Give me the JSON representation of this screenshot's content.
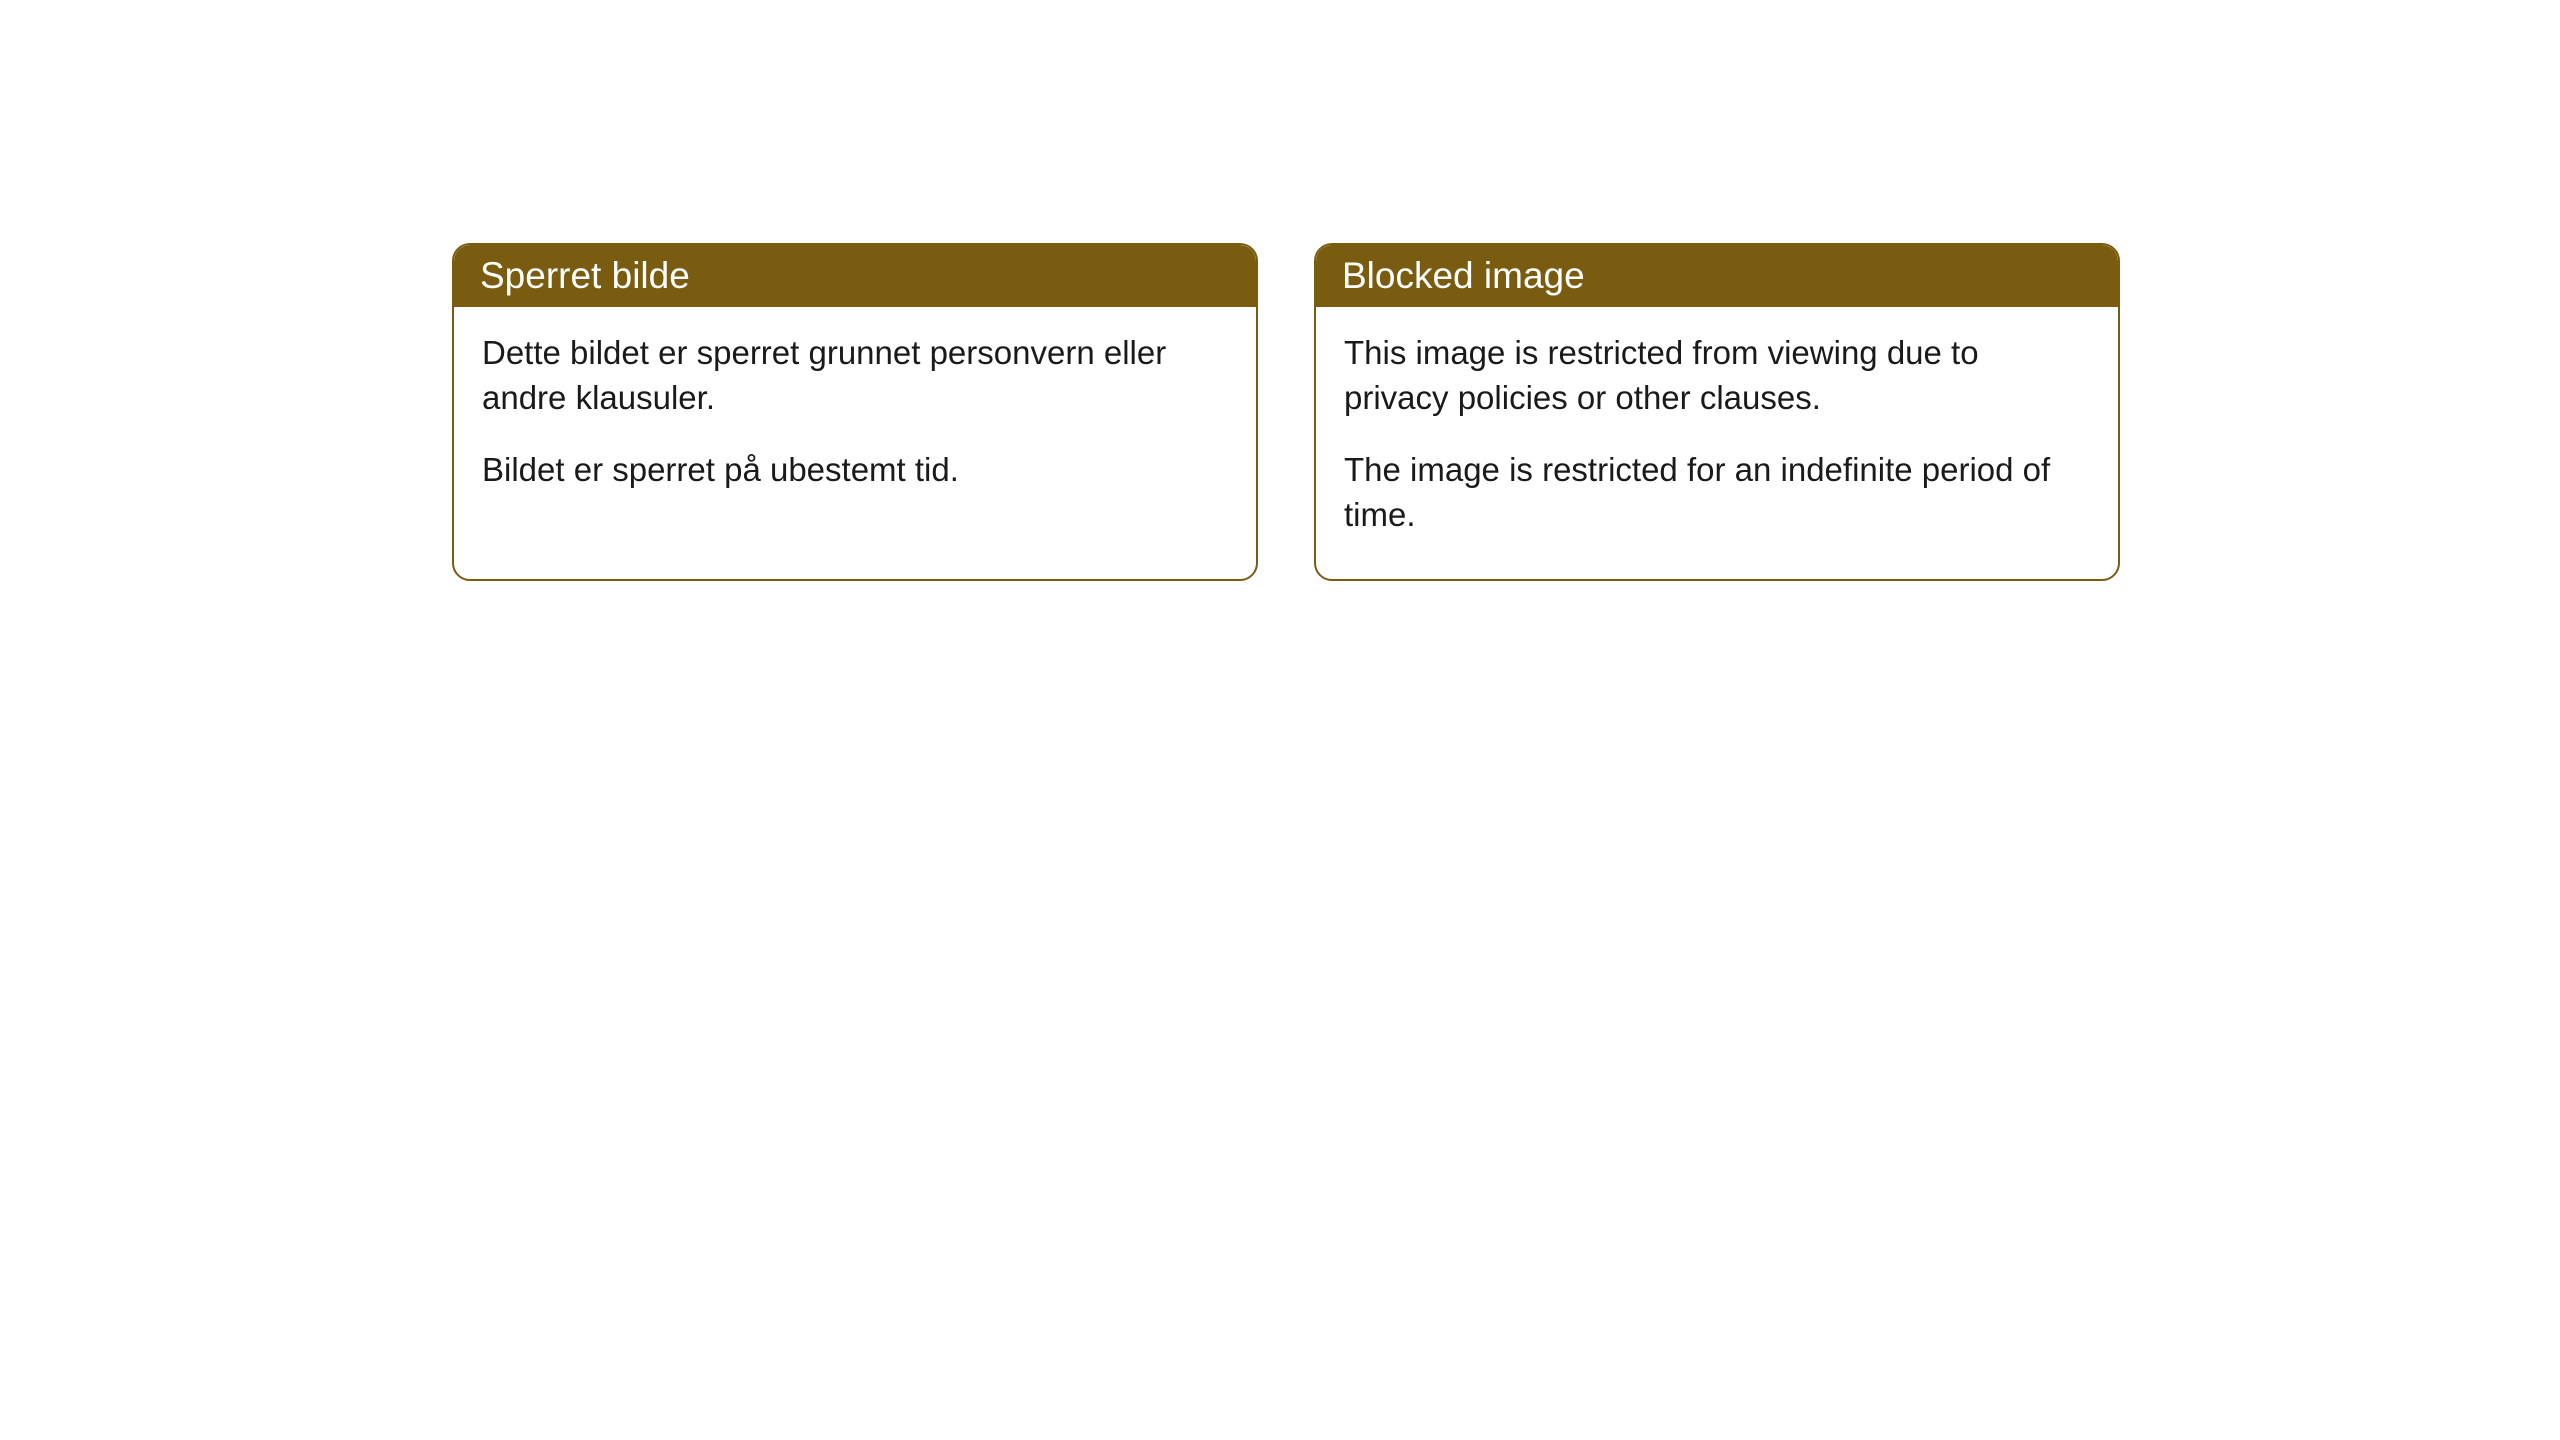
{
  "cards": [
    {
      "header": "Sperret bilde",
      "paragraph1": "Dette bildet er sperret grunnet personvern eller andre klausuler.",
      "paragraph2": "Bildet er sperret på ubestemt tid."
    },
    {
      "header": "Blocked image",
      "paragraph1": "This image is restricted from viewing due to privacy policies or other clauses.",
      "paragraph2": "The image is restricted for an indefinite period of time."
    }
  ],
  "style": {
    "header_bg_color": "#7a5c11",
    "header_text_color": "#ffffff",
    "border_color": "#7a5c11",
    "body_text_color": "#1a1a1a",
    "page_bg_color": "#ffffff",
    "border_radius": 18,
    "header_fontsize": 37,
    "body_fontsize": 33
  }
}
